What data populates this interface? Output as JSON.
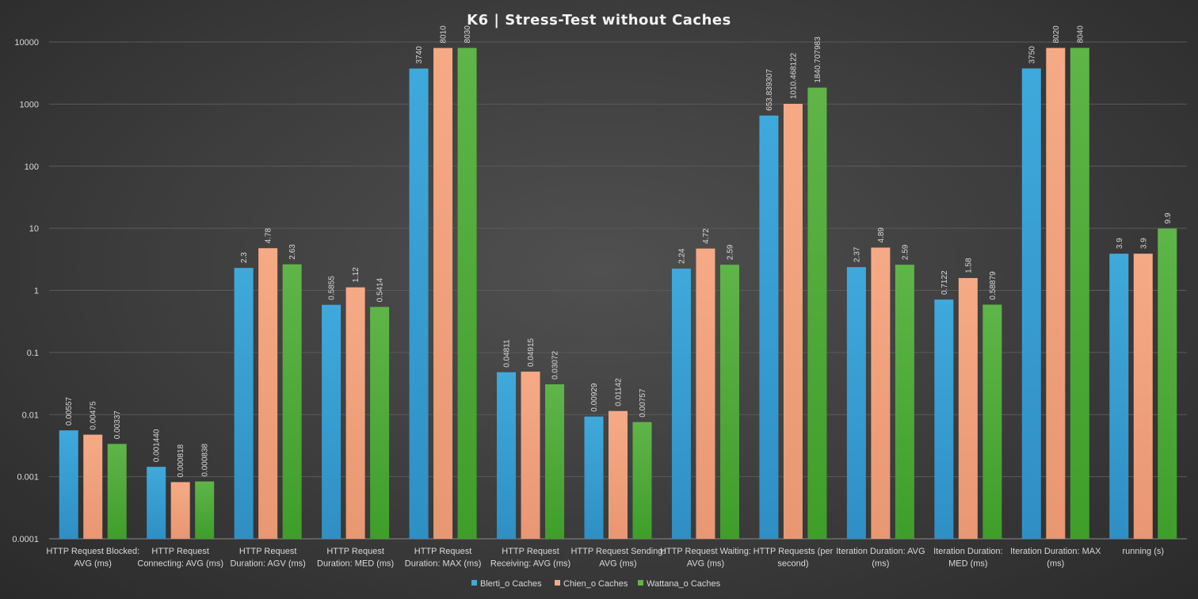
{
  "chart_data": {
    "type": "bar",
    "title": "K6 | Stress-Test without Caches",
    "y_scale": "log",
    "ylim": [
      0.0001,
      10000
    ],
    "yticks": [
      "10000",
      "1000",
      "100",
      "10",
      "1",
      "0.1",
      "0.01",
      "0.001",
      "0.0001"
    ],
    "grid": true,
    "legend_position": "bottom",
    "categories": [
      [
        "HTTP Request Blocked:",
        "AVG (ms)"
      ],
      [
        "HTTP Request",
        "Connecting: AVG (ms)"
      ],
      [
        "HTTP Request",
        "Duration: AGV (ms)"
      ],
      [
        "HTTP Request",
        "Duration: MED (ms)"
      ],
      [
        "HTTP Request",
        "Duration: MAX (ms)"
      ],
      [
        "HTTP Request",
        "Receiving: AVG (ms)"
      ],
      [
        "HTTP Request Sending:",
        "AVG (ms)"
      ],
      [
        "HTTP Request Waiting:",
        "AVG (ms)"
      ],
      [
        "HTTP Requests (per",
        "second)"
      ],
      [
        "Iteration Duration: AVG",
        "(ms)"
      ],
      [
        "Iteration Duration:",
        "MED (ms)"
      ],
      [
        "Iteration Duration: MAX",
        "(ms)"
      ],
      [
        "running (s)"
      ]
    ],
    "series": [
      {
        "name": "Blerti_o Caches",
        "color": "#3fa9dc",
        "color_dark": "#2f8fc4",
        "values": [
          0.00557,
          0.00144,
          2.3,
          0.5855,
          3740,
          0.04811,
          0.00929,
          2.24,
          653.839307,
          2.37,
          0.7122,
          3750,
          3.9
        ],
        "labels": [
          "0.00557",
          "0.001440",
          "2.3",
          "0.5855",
          "3740",
          "0.04811",
          "0.00929",
          "2.24",
          "653.839307",
          "2.37",
          "0.7122",
          "3750",
          "3.9"
        ]
      },
      {
        "name": "Chien_o Caches",
        "color": "#f5aa85",
        "color_dark": "#e89772",
        "values": [
          0.00475,
          0.000818,
          4.78,
          1.12,
          8010,
          0.04915,
          0.01142,
          4.72,
          1010.468122,
          4.89,
          1.58,
          8020,
          3.9
        ],
        "labels": [
          "0.00475",
          "0.000818",
          "4.78",
          "1.12",
          "8010",
          "0.04915",
          "0.01142",
          "4.72",
          "1010.468122",
          "4.89",
          "1.58",
          "8020",
          "3.9"
        ]
      },
      {
        "name": "Wattana_o Caches",
        "color": "#5fb548",
        "color_dark": "#3f9e2a",
        "values": [
          0.00337,
          0.000838,
          2.63,
          0.5414,
          8030,
          0.03072,
          0.00757,
          2.59,
          1840.707983,
          2.59,
          0.58879,
          8040,
          9.9
        ],
        "labels": [
          "0.00337",
          "0.000838",
          "2.63",
          "0.5414",
          "8030",
          "0.03072",
          "0.00757",
          "2.59",
          "1840.707983",
          "2.59",
          "0.58879",
          "8040",
          "9.9"
        ]
      }
    ]
  }
}
